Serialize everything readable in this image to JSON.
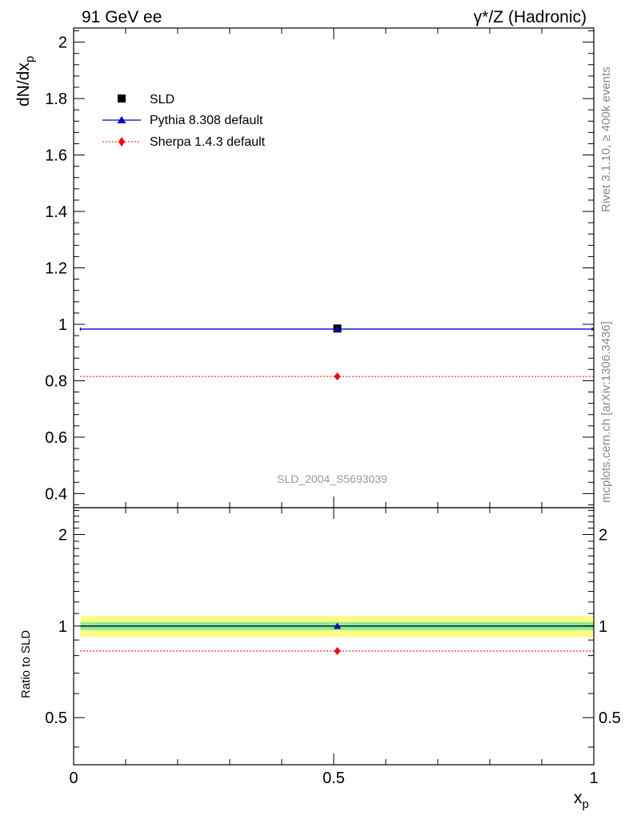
{
  "header": {
    "left_title": "91 GeV ee",
    "right_title_gamma": "γ",
    "right_title_rest": "*/Z (Hadronic)",
    "side_label_top": "Rivet 3.1.10, ≥ 400k events",
    "side_label_bottom": "mcplots.cern.ch [arXiv:1306.3436]",
    "watermark": "SLD_2004_S5693039"
  },
  "chart_data": [
    {
      "type": "scatter",
      "panel": "main",
      "ylabel_main": "dN/dx",
      "ylabel_sub": "p",
      "xlim": [
        0,
        1
      ],
      "ylim": [
        0.35,
        2.05
      ],
      "ytick_values": [
        0.4,
        0.6,
        0.8,
        1.0,
        1.2,
        1.4,
        1.6,
        1.8,
        2.0
      ],
      "ytick_labels": [
        "0.4",
        "0.6",
        "0.8",
        "1",
        "1.2",
        "1.4",
        "1.6",
        "1.8",
        "2"
      ],
      "series": [
        {
          "name": "SLD",
          "kind": "data",
          "marker": "square",
          "color": "#000000",
          "x": [
            0.507
          ],
          "y": [
            0.985
          ],
          "yerr": [
            0.004
          ]
        },
        {
          "name": "Pythia 8.308 default",
          "kind": "mc",
          "marker": "triangle",
          "color": "#0000cc",
          "line": "solid",
          "x": [
            0.507
          ],
          "y": [
            0.983
          ],
          "xrange": [
            0.013,
            1.0
          ]
        },
        {
          "name": "Sherpa 1.4.3 default",
          "kind": "mc",
          "marker": "diamond",
          "color": "#ff0000",
          "line": "dotted",
          "x": [
            0.507
          ],
          "y": [
            0.815
          ],
          "xrange": [
            0.013,
            1.0
          ]
        }
      ],
      "legend_position": "top-left"
    },
    {
      "type": "scatter",
      "panel": "ratio",
      "ylabel": "Ratio to SLD",
      "xlabel_main": "x",
      "xlabel_sub": "p",
      "xlim": [
        0,
        1
      ],
      "ylim": [
        0.35,
        2.45
      ],
      "yscale": "log",
      "ytick_values": [
        0.5,
        1.0,
        2.0
      ],
      "ytick_labels": [
        "0.5",
        "1",
        "2"
      ],
      "xtick_values": [
        0,
        0.5,
        1
      ],
      "xtick_labels": [
        "0",
        "0.5",
        "1"
      ],
      "bands": {
        "inner": [
          0.97,
          1.03
        ],
        "outer": [
          0.92,
          1.08
        ],
        "inner_color": "#88ee88",
        "outer_color": "#ffff88"
      },
      "series": [
        {
          "name": "Pythia 8.308 default",
          "color": "#0000cc",
          "line": "solid",
          "x": [
            0.507
          ],
          "y": [
            1.0
          ],
          "xrange": [
            0.013,
            1.0
          ]
        },
        {
          "name": "Sherpa 1.4.3 default",
          "color": "#ff0000",
          "line": "dotted",
          "x": [
            0.507
          ],
          "y": [
            0.828
          ],
          "xrange": [
            0.013,
            1.0
          ]
        }
      ]
    }
  ]
}
